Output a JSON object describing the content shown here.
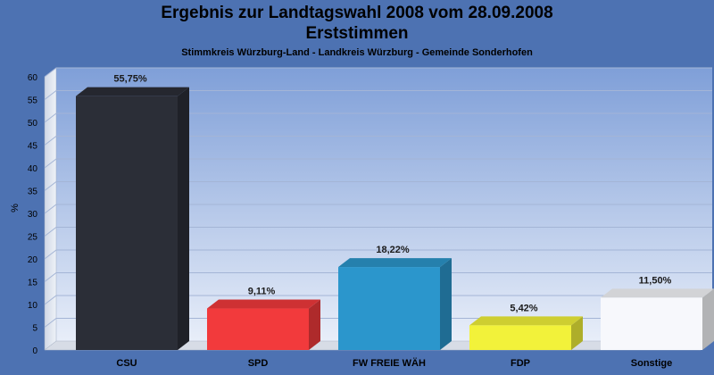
{
  "chart_data": {
    "type": "bar",
    "title": "Ergebnis zur Landtagswahl 2008 vom 28.09.2008",
    "subtitle": "Erststimmen",
    "subsubtitle": "Stimmkreis Würzburg-Land - Landkreis Würzburg - Gemeinde Sonderhofen",
    "ylabel": "%",
    "ylim": [
      0,
      60
    ],
    "yticks": [
      0,
      5,
      10,
      15,
      20,
      25,
      30,
      35,
      40,
      45,
      50,
      55,
      60
    ],
    "categories": [
      "CSU",
      "SPD",
      "FW FREIE WÄH",
      "FDP",
      "Sonstige"
    ],
    "values": [
      55.75,
      9.11,
      18.22,
      5.42,
      11.5
    ],
    "value_labels": [
      "55,75%",
      "9,11%",
      "18,22%",
      "5,42%",
      "11,50%"
    ],
    "colors": [
      "#2b2e37",
      "#f23a3c",
      "#2b96cc",
      "#f2f23a",
      "#f7f8fc"
    ],
    "grid": true,
    "legend": "none"
  }
}
